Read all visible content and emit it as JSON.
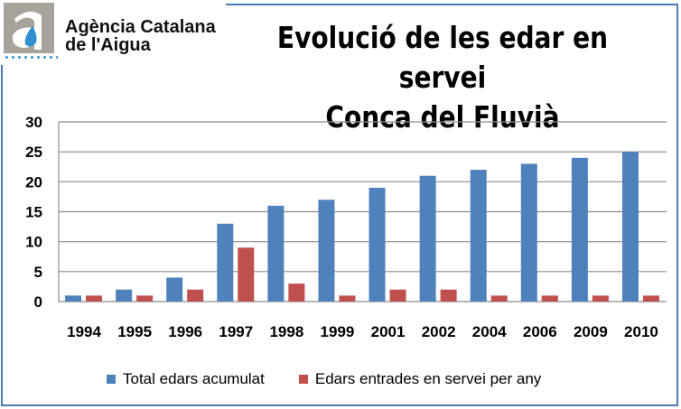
{
  "logo": {
    "text_line1": "Agència Catalana",
    "text_line2": "de l'Aigua"
  },
  "chart_data": {
    "type": "bar",
    "title": "Evolució de les edar en servei",
    "subtitle": "Conca del Fluvià",
    "categories": [
      "1994",
      "1995",
      "1996",
      "1997",
      "1998",
      "1999",
      "2001",
      "2002",
      "2004",
      "2006",
      "2009",
      "2010"
    ],
    "series": [
      {
        "name": "Total edars acumulat",
        "color": "#4f81bd",
        "values": [
          1,
          2,
          4,
          13,
          16,
          17,
          19,
          21,
          22,
          23,
          24,
          25
        ]
      },
      {
        "name": "Edars entrades en servei per any",
        "color": "#c0504d",
        "values": [
          1,
          1,
          2,
          9,
          3,
          1,
          2,
          2,
          1,
          1,
          1,
          1
        ]
      }
    ],
    "ylim": [
      0,
      30
    ],
    "yticks": [
      "0",
      "5",
      "10",
      "15",
      "20",
      "25",
      "30"
    ],
    "grid": true,
    "legend": "bottom"
  }
}
